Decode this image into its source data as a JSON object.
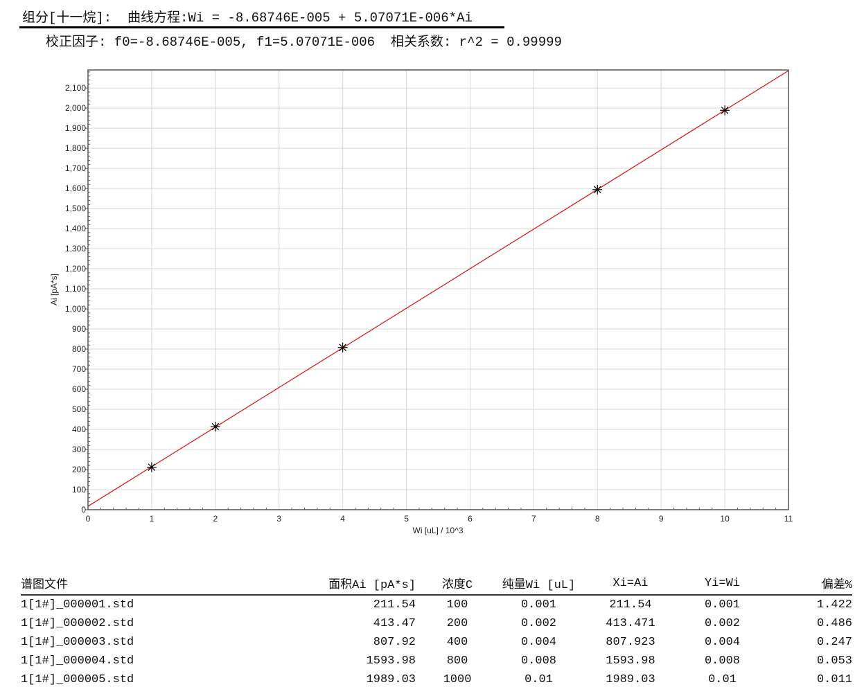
{
  "header": {
    "title": "组分[十一烷]:  曲线方程:Wi = -8.68746E-005 + 5.07071E-006*Ai",
    "subtitle": "校正因子: f0=-8.68746E-005, f1=5.07071E-006  相关系数: r^2 = 0.99999"
  },
  "chart_data": {
    "type": "scatter",
    "xlabel": "Wi [uL] / 10^3",
    "ylabel": "Ai [pA*s]",
    "xlim": [
      0,
      11
    ],
    "ylim": [
      0,
      2190
    ],
    "xticks": [
      0,
      1,
      2,
      3,
      4,
      5,
      6,
      7,
      8,
      9,
      10,
      11
    ],
    "yticks": [
      0,
      100,
      200,
      300,
      400,
      500,
      600,
      700,
      800,
      900,
      1000,
      1100,
      1200,
      1300,
      1400,
      1500,
      1600,
      1700,
      1800,
      1900,
      2000,
      2100
    ],
    "ytick_labels": [
      "0",
      "100",
      "200",
      "300",
      "400",
      "500",
      "600",
      "700",
      "800",
      "900",
      "1,000",
      "1,100",
      "1,200",
      "1,300",
      "1,400",
      "1,500",
      "1,600",
      "1,700",
      "1,800",
      "1,900",
      "2,000",
      "2,100"
    ],
    "grid": true,
    "points": {
      "x": [
        1,
        2,
        4,
        8,
        10
      ],
      "y": [
        211.54,
        413.47,
        807.92,
        1593.98,
        1989.03
      ],
      "marker": "asterisk",
      "color": "#000000"
    },
    "fit_line": {
      "x": [
        0,
        11
      ],
      "y": [
        17.1,
        2186.5
      ],
      "color": "#d62020"
    }
  },
  "table": {
    "headers": [
      "谱图文件",
      "面积Ai [pA*s]",
      "浓度C",
      "纯量Wi [uL]",
      "Xi=Ai",
      "Yi=Wi",
      "偏差%"
    ],
    "rows": [
      [
        "1[1#]_000001.std",
        "211.54",
        "100",
        "0.001",
        "211.54",
        "0.001",
        "1.422"
      ],
      [
        "1[1#]_000002.std",
        "413.47",
        "200",
        "0.002",
        "413.471",
        "0.002",
        "0.486"
      ],
      [
        "1[1#]_000003.std",
        "807.92",
        "400",
        "0.004",
        "807.923",
        "0.004",
        "0.247"
      ],
      [
        "1[1#]_000004.std",
        "1593.98",
        "800",
        "0.008",
        "1593.98",
        "0.008",
        "0.053"
      ],
      [
        "1[1#]_000005.std",
        "1989.03",
        "1000",
        "0.01",
        "1989.03",
        "0.01",
        "0.011"
      ]
    ]
  }
}
